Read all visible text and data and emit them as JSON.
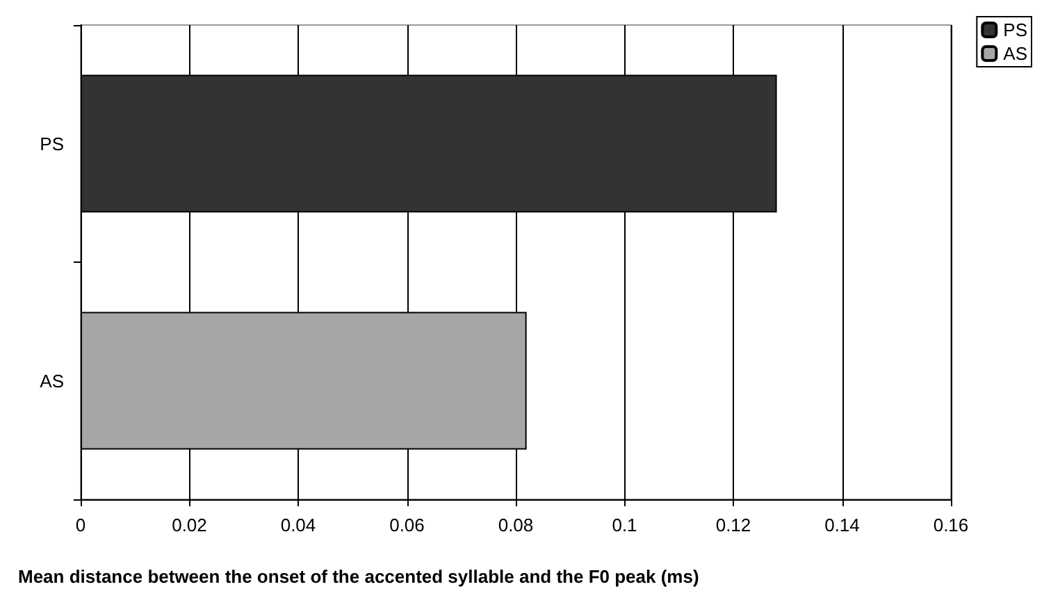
{
  "chart_data": {
    "type": "bar",
    "orientation": "horizontal",
    "xlabel": "Mean distance between the onset of the accented syllable and the F0 peak (ms)",
    "categories": [
      "PS",
      "AS"
    ],
    "series": [
      {
        "name": "PS",
        "color": "#333333",
        "values": [
          0.128,
          null
        ]
      },
      {
        "name": "AS",
        "color": "#a6a6a6",
        "values": [
          null,
          0.082
        ]
      }
    ],
    "xlim": [
      0,
      0.16
    ],
    "xticks": [
      0,
      0.02,
      0.04,
      0.06,
      0.08,
      0.1,
      0.12,
      0.14,
      0.16
    ],
    "grid": "x",
    "legend": "top right"
  }
}
